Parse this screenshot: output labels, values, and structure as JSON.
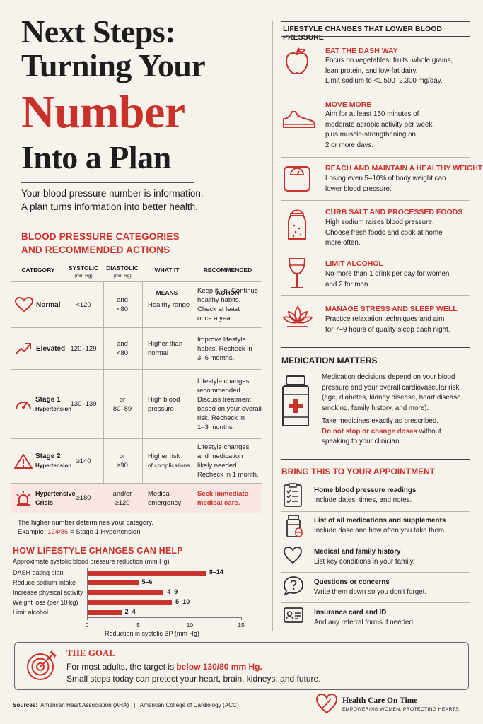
{
  "title": {
    "line1": "Next Steps:",
    "line2": "Turning Your",
    "line3": "Number",
    "line4": "Into a Plan"
  },
  "intro": [
    "Your blood pressure number is information.",
    "A plan turns information into better health."
  ],
  "categories_section": {
    "heading_line1": "BLOOD PRESSURE CATEGORIES",
    "heading_line2": "AND RECOMMENDED ACTIONS",
    "columns": {
      "category": "CATEGORY",
      "systolic": "SYSTOLIC",
      "systolic_unit": "(mm Hg)",
      "diastolic": "DIASTOLIC",
      "diastolic_unit": "(mm Hg)",
      "meaning": "WHAT IT MEANS",
      "action": "RECOMMENDED ACTION"
    },
    "rows": [
      {
        "name": "Normal",
        "sub": "",
        "icon": "heart-icon",
        "systolic": "<120",
        "diastolic": [
          "and",
          "<80"
        ],
        "meaning": [
          "Healthy range"
        ],
        "action": [
          "Keep it up. Continue",
          "healthy habits.",
          "Check at least",
          "once a year."
        ]
      },
      {
        "name": "Elevated",
        "sub": "",
        "icon": "trend-up-icon",
        "systolic": "120–129",
        "diastolic": [
          "and",
          "<80"
        ],
        "meaning": [
          "Higher than",
          "normal"
        ],
        "action": [
          "Improve lifestyle",
          "habits. Recheck in",
          "3–6 months."
        ]
      },
      {
        "name": "Stage 1",
        "sub": "Hypertension",
        "icon": "gauge-icon",
        "systolic": "130–139",
        "diastolic": [
          "or",
          "80–89"
        ],
        "meaning": [
          "High blood",
          "pressure"
        ],
        "action": [
          "Lifestyle changes",
          "recommended.",
          "Discuss treatment",
          "based on your overall",
          "risk. Recheck in",
          "1–3 months."
        ]
      },
      {
        "name": "Stage 2",
        "sub": "Hypertension",
        "icon": "warning-icon",
        "systolic": "≥140",
        "diastolic": [
          "or",
          "≥90"
        ],
        "meaning": [
          "Higher risk",
          "of complications"
        ],
        "action": [
          "Lifestyle changes",
          "and medication",
          "likely needed.",
          "Recheck in 1 month."
        ]
      },
      {
        "name": "Hypertensive",
        "sub": "Crisis",
        "icon": "alarm-icon",
        "systolic": "≥180",
        "diastolic": [
          "and/or",
          "≥120"
        ],
        "meaning": [
          "Medical",
          "emergency"
        ],
        "action": [
          "Seek immediate",
          "medical care."
        ]
      }
    ],
    "note_line1": "The higher number determines your category.",
    "note_example_prefix": "Example: ",
    "note_example_value": "124/86",
    "note_example_suffix": " = Stage 1 Hypertension"
  },
  "lifestyle_chart": {
    "heading": "HOW LIFESTYLE CHANGES CAN HELP",
    "subtitle": "Approximate systolic blood pressure reduction (mm Hg)",
    "axis_title": "Reduction in systolic BP (mm Hg)"
  },
  "chart_data": {
    "type": "bar",
    "orientation": "horizontal",
    "categories": [
      "DASH eating plan",
      "Reduce sodium intake",
      "Increase physical activity",
      "Weight loss (per 10 kg)",
      "Limit alcohol"
    ],
    "values": [
      14,
      6,
      9,
      10,
      4
    ],
    "labels": [
      "8–14",
      "5–6",
      "4–9",
      "5–10",
      "2–4"
    ],
    "ticks": [
      "0",
      "5",
      "10",
      "15"
    ],
    "xlim": [
      0,
      15
    ],
    "xlabel": "Reduction in systolic BP (mm Hg)",
    "title": "HOW LIFESTYLE CHANGES CAN HELP",
    "subtitle": "Approximate systolic blood pressure reduction (mm Hg)",
    "color": "#c8322a"
  },
  "lifestyle_tips": {
    "heading": "LIFESTYLE CHANGES THAT LOWER BLOOD PRESSURE",
    "items": [
      {
        "icon": "apple-icon",
        "title": "EAT THE DASH WAY",
        "lines": [
          "Focus on vegetables, fruits, whole grains,",
          "lean protein, and low-fat dairy.",
          "Limit sodium to <1,500–2,300 mg/day."
        ]
      },
      {
        "icon": "sneaker-icon",
        "title": "MOVE MORE",
        "lines": [
          "Aim for at least 150 minutes of",
          "moderate aerobic activity per week,",
          "plus muscle-strengthening on",
          "2 or more days."
        ]
      },
      {
        "icon": "scale-icon",
        "title": "REACH AND MAINTAIN A HEALTHY WEIGHT",
        "lines": [
          "Losing even 5–10% of body weight can",
          "lower blood pressure."
        ]
      },
      {
        "icon": "salt-shaker-icon",
        "title": "CURB SALT AND PROCESSED FOODS",
        "lines": [
          "High sodium raises blood pressure.",
          "Choose fresh foods and cook at home",
          "more often."
        ]
      },
      {
        "icon": "wine-glass-icon",
        "title": "LIMIT ALCOHOL",
        "lines": [
          "No more than 1 drink per day for women",
          "and 2 for men."
        ]
      },
      {
        "icon": "lotus-icon",
        "title": "MANAGE STRESS AND SLEEP WELL",
        "lines": [
          "Practice relaxation techniques and aim",
          "for 7–9 hours of quality sleep each night."
        ]
      }
    ]
  },
  "medication": {
    "heading": "MEDICATION MATTERS",
    "para1": [
      "Medication decisions depend on your blood",
      "pressure and your overall cardiovascular risk",
      "(age, diabetes, kidney disease, heart disease,",
      "smoking, family history, and more)."
    ],
    "para2_line1": "Take medicines exactly as prescribed.",
    "para2_warn": "Do not stop or change doses",
    "para2_rest": " without",
    "para2_line3": "speaking to your clinician."
  },
  "appointment": {
    "heading": "BRING THIS TO YOUR APPOINTMENT",
    "items": [
      {
        "icon": "checklist-icon",
        "title": "Home blood pressure readings",
        "text": "Include dates, times, and notes."
      },
      {
        "icon": "pill-bottle-icon",
        "title": "List of all medications and supplements",
        "text": "Include dose and how often you take them."
      },
      {
        "icon": "heart-outline-icon",
        "title": "Medical and family history",
        "text": "List key conditions in your family."
      },
      {
        "icon": "question-bubble-icon",
        "title": "Questions or concerns",
        "text": "Write them down so you don't forget."
      },
      {
        "icon": "id-card-icon",
        "title": "Insurance card and ID",
        "text": "And any referral forms if needed."
      }
    ]
  },
  "goal": {
    "heading": "THE GOAL",
    "line1_prefix": "For most adults, the target is ",
    "line1_target": "below 130/80 mm Hg.",
    "line2": "Small steps today can protect your heart, brain, kidneys, and future."
  },
  "footer": {
    "sources_label": "Sources:",
    "sources": "American Heart Association (AHA)   |   American College of Cardiology (ACC)",
    "brand_name": "Health Care On Time",
    "tagline": "EMPOWERING WOMEN. PROTECTING HEARTS."
  },
  "colors": {
    "accent": "#c8322a",
    "background": "#f6f2ec",
    "crisis_row": "#f7e6e2"
  }
}
